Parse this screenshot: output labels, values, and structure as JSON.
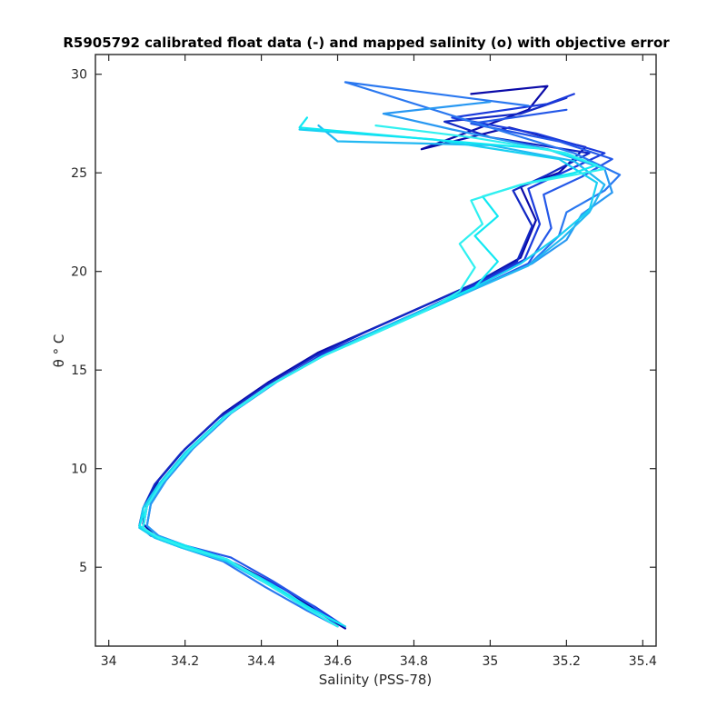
{
  "chart_data": {
    "type": "line",
    "title": "R5905792 calibrated float data (-) and mapped salinity (o) with objective error",
    "xlabel": "Salinity (PSS-78)",
    "ylabel": "θ ° C",
    "xlim": [
      33.965,
      35.435
    ],
    "ylim": [
      1,
      31
    ],
    "xticks": [
      34,
      34.2,
      34.4,
      34.6,
      34.8,
      35,
      35.2,
      35.4
    ],
    "xtick_labels": [
      "34",
      "34.2",
      "34.4",
      "34.6",
      "34.8",
      "35",
      "35.2",
      "35.4"
    ],
    "yticks": [
      5,
      10,
      15,
      20,
      25,
      30
    ],
    "ytick_labels": [
      "5",
      "10",
      "15",
      "20",
      "25",
      "30"
    ],
    "grid": false,
    "legend": "none",
    "series_colors_note": "profiles colored from dark blue (early) to cyan (late)",
    "color_ramp": [
      "#0a0aa8",
      "#1a3adc",
      "#2a78f0",
      "#22b8f2",
      "#10e8f2"
    ],
    "series": [
      {
        "color": "#0a0aa8",
        "x": [
          34.62,
          34.56,
          34.46,
          34.33,
          34.2,
          34.12,
          34.09,
          34.1,
          34.13,
          34.2,
          34.3,
          34.42,
          34.55,
          34.68,
          34.82,
          34.96,
          35.08,
          35.12,
          35.08,
          35.18,
          35.25,
          35.05,
          34.82,
          35.1,
          35.15,
          34.95
        ],
        "y": [
          1.9,
          2.6,
          3.9,
          5.2,
          6.0,
          6.6,
          7.2,
          8.2,
          9.4,
          11.0,
          12.8,
          14.4,
          15.9,
          17.0,
          18.2,
          19.4,
          20.7,
          22.6,
          24.3,
          25.0,
          26.3,
          27.3,
          26.2,
          28.2,
          29.4,
          29.0
        ]
      },
      {
        "color": "#1228c4",
        "x": [
          34.6,
          34.52,
          34.42,
          34.3,
          34.18,
          34.11,
          34.08,
          34.09,
          34.12,
          34.19,
          34.29,
          34.41,
          34.54,
          34.67,
          34.81,
          34.95,
          35.07,
          35.11,
          35.06,
          35.15,
          35.26,
          35.0,
          34.88,
          35.08,
          35.2
        ],
        "y": [
          2.0,
          2.9,
          4.2,
          5.4,
          6.1,
          6.6,
          7.1,
          8.0,
          9.2,
          10.8,
          12.6,
          14.2,
          15.7,
          16.9,
          18.1,
          19.3,
          20.5,
          22.3,
          24.1,
          24.9,
          26.0,
          26.8,
          27.6,
          28.0,
          28.8
        ]
      },
      {
        "color": "#1a3adc",
        "x": [
          34.61,
          34.54,
          34.44,
          34.31,
          34.19,
          34.12,
          34.09,
          34.1,
          34.14,
          34.21,
          34.31,
          34.43,
          34.56,
          34.69,
          34.83,
          34.97,
          35.09,
          35.13,
          35.1,
          35.2,
          35.3,
          35.12,
          34.9,
          35.15,
          35.22
        ],
        "y": [
          2.1,
          3.0,
          4.1,
          5.3,
          6.0,
          6.5,
          7.0,
          8.1,
          9.3,
          10.9,
          12.7,
          14.3,
          15.8,
          16.9,
          18.1,
          19.4,
          20.6,
          22.4,
          24.2,
          25.1,
          26.0,
          27.0,
          27.8,
          28.5,
          29.0
        ]
      },
      {
        "color": "#2458e8",
        "x": [
          34.59,
          34.53,
          34.43,
          34.32,
          34.2,
          34.13,
          34.1,
          34.11,
          34.15,
          34.22,
          34.32,
          34.44,
          34.57,
          34.7,
          34.84,
          34.98,
          35.1,
          35.16,
          35.14,
          35.24,
          35.32,
          35.18,
          34.95,
          35.2
        ],
        "y": [
          2.2,
          3.1,
          4.3,
          5.5,
          6.1,
          6.6,
          7.1,
          8.2,
          9.4,
          11.0,
          12.8,
          14.4,
          15.8,
          16.9,
          18.1,
          19.3,
          20.4,
          22.2,
          23.9,
          24.8,
          25.7,
          26.6,
          27.5,
          28.2
        ]
      },
      {
        "color": "#2a78f0",
        "x": [
          34.6,
          34.52,
          34.41,
          34.3,
          34.19,
          34.12,
          34.09,
          34.1,
          34.14,
          34.21,
          34.31,
          34.43,
          34.56,
          34.69,
          34.83,
          34.97,
          35.1,
          35.18,
          35.2,
          35.3,
          35.34,
          35.22,
          35.05,
          34.62,
          35.1
        ],
        "y": [
          2.0,
          2.8,
          4.0,
          5.3,
          6.0,
          6.5,
          7.0,
          8.1,
          9.3,
          10.9,
          12.7,
          14.3,
          15.7,
          16.8,
          18.0,
          19.2,
          20.3,
          21.8,
          23.0,
          24.1,
          24.9,
          26.0,
          27.0,
          29.6,
          28.4
        ]
      },
      {
        "color": "#2898f2",
        "x": [
          34.61,
          34.53,
          34.42,
          34.31,
          34.2,
          34.13,
          34.1,
          34.11,
          34.15,
          34.22,
          34.32,
          34.44,
          34.57,
          34.7,
          34.84,
          34.98,
          35.11,
          35.2,
          35.24,
          35.32,
          35.3,
          35.15,
          34.9,
          34.72,
          35.0
        ],
        "y": [
          2.1,
          2.9,
          4.1,
          5.4,
          6.1,
          6.6,
          7.1,
          8.2,
          9.4,
          11.0,
          12.8,
          14.4,
          15.8,
          16.9,
          18.1,
          19.3,
          20.4,
          21.6,
          22.9,
          24.0,
          25.2,
          26.2,
          27.2,
          28.0,
          28.6
        ]
      },
      {
        "color": "#22b8f2",
        "x": [
          34.6,
          34.52,
          34.42,
          34.3,
          34.19,
          34.12,
          34.09,
          34.1,
          34.14,
          34.21,
          34.31,
          34.43,
          34.56,
          34.69,
          34.83,
          34.97,
          35.1,
          35.19,
          35.26,
          35.3,
          35.22,
          35.0,
          34.6,
          34.55
        ],
        "y": [
          2.0,
          2.9,
          4.1,
          5.4,
          6.0,
          6.5,
          7.0,
          8.1,
          9.3,
          10.9,
          12.7,
          14.3,
          15.7,
          16.8,
          18.0,
          19.2,
          20.3,
          21.7,
          23.0,
          24.4,
          25.6,
          26.4,
          26.6,
          27.4
        ]
      },
      {
        "color": "#18d0f2",
        "x": [
          34.62,
          34.54,
          34.43,
          34.31,
          34.19,
          34.12,
          34.08,
          34.09,
          34.13,
          34.2,
          34.3,
          34.42,
          34.55,
          34.68,
          34.82,
          34.96,
          35.08,
          35.18,
          35.26,
          35.28,
          35.18,
          34.85,
          34.5
        ],
        "y": [
          2.0,
          2.8,
          4.0,
          5.3,
          6.0,
          6.5,
          7.0,
          8.0,
          9.2,
          10.8,
          12.6,
          14.2,
          15.6,
          16.8,
          18.0,
          19.2,
          20.4,
          21.8,
          23.1,
          24.5,
          25.7,
          26.7,
          27.2
        ]
      },
      {
        "color": "#10e8f2",
        "x": [
          34.61,
          34.53,
          34.43,
          34.31,
          34.2,
          34.12,
          34.08,
          34.1,
          34.14,
          34.21,
          34.31,
          34.43,
          34.56,
          34.69,
          34.83,
          34.96,
          35.02,
          34.96,
          35.02,
          34.98,
          35.1,
          35.22,
          35.28,
          35.15,
          34.9,
          34.5,
          34.52
        ],
        "y": [
          2.1,
          2.9,
          4.1,
          5.4,
          6.1,
          6.6,
          7.1,
          8.1,
          9.3,
          10.9,
          12.7,
          14.3,
          15.7,
          16.8,
          18.0,
          19.2,
          20.5,
          21.8,
          22.8,
          23.8,
          24.5,
          25.0,
          25.4,
          26.2,
          26.6,
          27.3,
          27.8
        ]
      },
      {
        "color": "#30f0f0",
        "x": [
          34.6,
          34.52,
          34.42,
          34.31,
          34.2,
          34.13,
          34.09,
          34.1,
          34.14,
          34.21,
          34.31,
          34.43,
          34.56,
          34.69,
          34.83,
          34.92,
          34.96,
          34.92,
          34.98,
          34.95,
          35.08,
          35.22,
          35.3,
          35.2,
          34.95,
          34.7
        ],
        "y": [
          2.0,
          2.9,
          4.1,
          5.4,
          6.0,
          6.5,
          7.0,
          8.1,
          9.3,
          10.9,
          12.7,
          14.3,
          15.7,
          16.8,
          18.0,
          19.0,
          20.2,
          21.4,
          22.4,
          23.6,
          24.4,
          24.9,
          25.2,
          26.0,
          26.8,
          27.4
        ]
      }
    ]
  }
}
